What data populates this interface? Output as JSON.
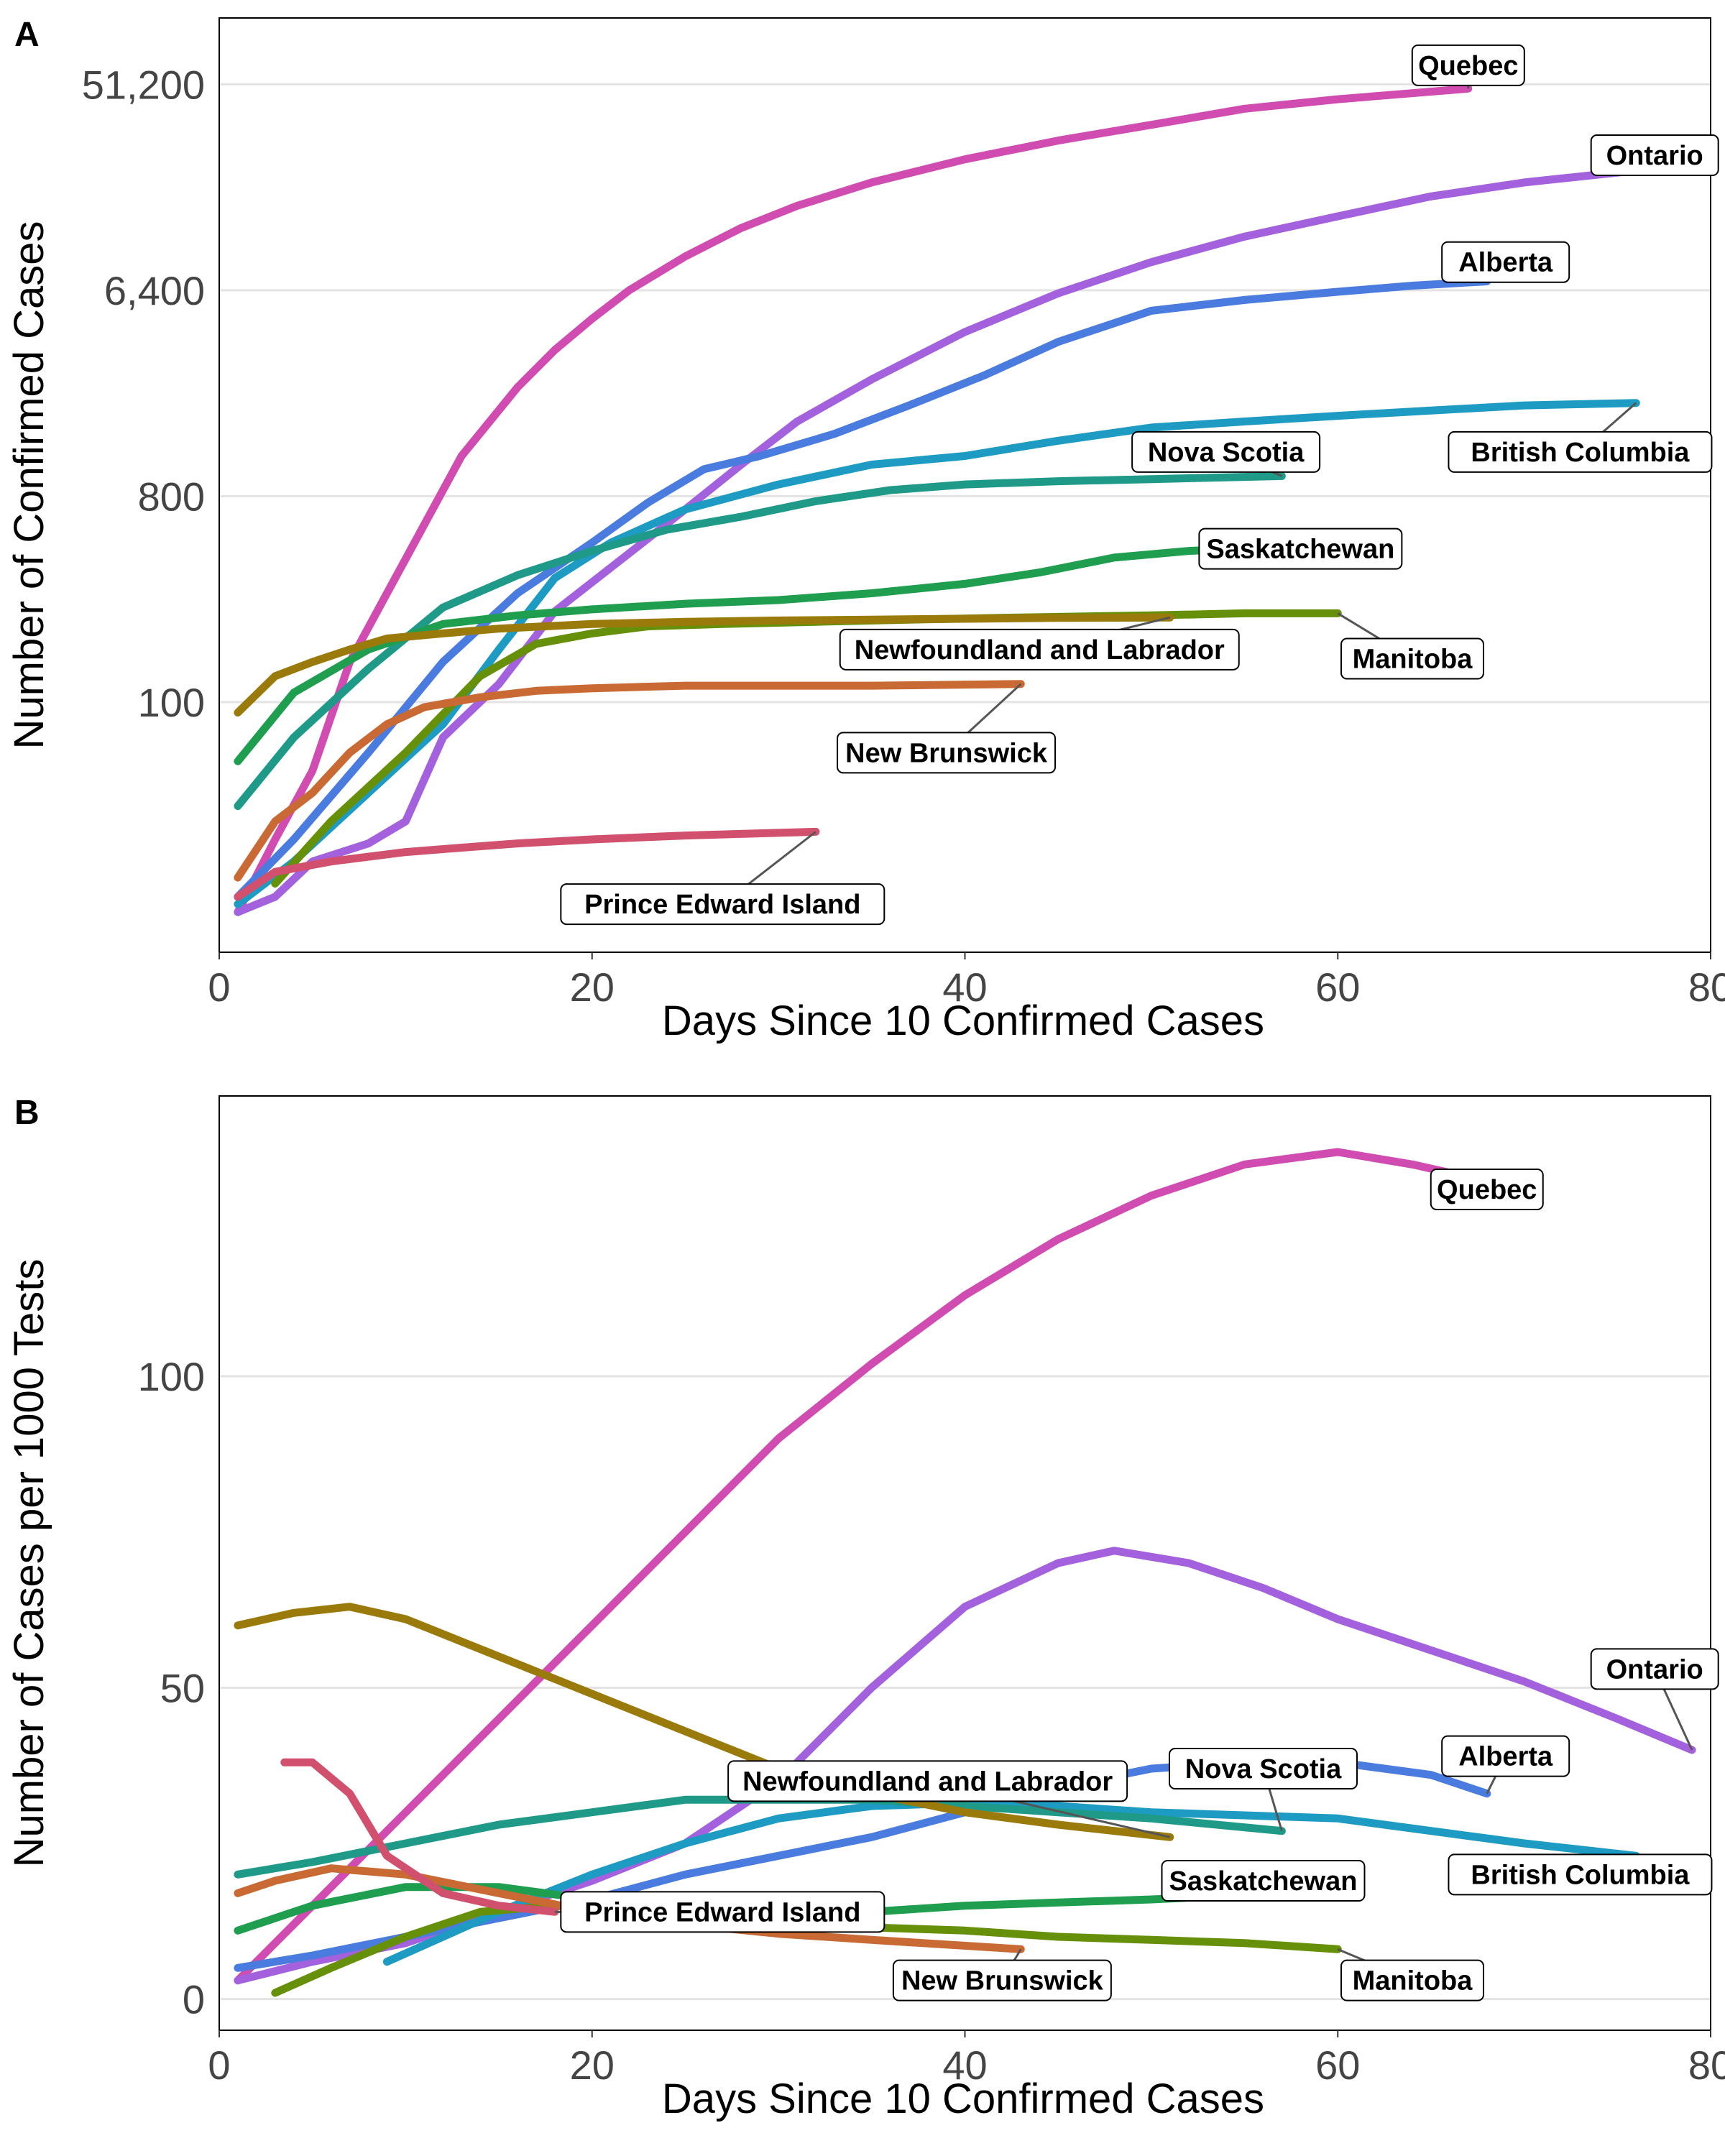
{
  "colors": {
    "Quebec": "#D14CB0",
    "Ontario": "#A361DD",
    "Alberta": "#4A7BDF",
    "British Columbia": "#1D9BC2",
    "Nova Scotia": "#1F9A89",
    "Saskatchewan": "#1E9E4E",
    "Manitoba": "#66900A",
    "Newfoundland and Labrador": "#9A7A0A",
    "New Brunswick": "#C96A35",
    "Prince Edward Island": "#D1506E"
  },
  "chart_data": [
    {
      "panel": "A",
      "type": "line",
      "xlabel": "Days Since 10 Confirmed Cases",
      "ylabel": "Number of Confirmed Cases",
      "xlim": [
        0,
        80
      ],
      "xticks": [
        0,
        20,
        40,
        60,
        80
      ],
      "ylim": [
        8,
        100000
      ],
      "y_scale": "log",
      "yticks": [
        100,
        800,
        6400,
        51200
      ],
      "ytick_labels": [
        "100",
        "800",
        "6,400",
        "51,200"
      ],
      "grid": "horizontal",
      "series": [
        {
          "name": "Quebec",
          "label_pos": [
            67,
            62000
          ],
          "x": [
            1,
            3,
            5,
            7,
            9,
            11,
            13,
            16,
            18,
            20,
            22,
            25,
            28,
            31,
            35,
            40,
            45,
            50,
            55,
            60,
            67
          ],
          "y": [
            12,
            25,
            50,
            150,
            300,
            600,
            1200,
            2400,
            3500,
            4800,
            6400,
            9000,
            12000,
            15000,
            19000,
            24000,
            29000,
            34000,
            40000,
            44000,
            49000
          ]
        },
        {
          "name": "Ontario",
          "label_pos": [
            77,
            25000
          ],
          "x": [
            1,
            3,
            5,
            8,
            10,
            12,
            15,
            18,
            22,
            25,
            28,
            31,
            35,
            40,
            45,
            50,
            55,
            60,
            65,
            70,
            75,
            79
          ],
          "y": [
            12,
            14,
            20,
            24,
            30,
            70,
            120,
            250,
            450,
            700,
            1100,
            1700,
            2600,
            4200,
            6200,
            8500,
            11000,
            13500,
            16500,
            19000,
            21000,
            22500
          ]
        },
        {
          "name": "Alberta",
          "label_pos": [
            69,
            8500
          ],
          "x": [
            1,
            4,
            8,
            12,
            16,
            20,
            23,
            26,
            29,
            33,
            37,
            41,
            45,
            50,
            55,
            60,
            64,
            68
          ],
          "y": [
            14,
            25,
            60,
            150,
            300,
            500,
            750,
            1050,
            1200,
            1500,
            2000,
            2700,
            3800,
            5200,
            5800,
            6300,
            6700,
            7000
          ]
        },
        {
          "name": "British Columbia",
          "label_pos": [
            73,
            1250
          ],
          "x": [
            1,
            4,
            8,
            12,
            15,
            18,
            21,
            25,
            30,
            35,
            40,
            45,
            50,
            55,
            60,
            65,
            70,
            76
          ],
          "y": [
            13,
            20,
            40,
            80,
            170,
            350,
            500,
            700,
            900,
            1100,
            1200,
            1400,
            1600,
            1700,
            1800,
            1900,
            2000,
            2050
          ]
        },
        {
          "name": "Nova Scotia",
          "label_pos": [
            54,
            1250
          ],
          "x": [
            1,
            4,
            8,
            12,
            16,
            20,
            24,
            28,
            32,
            36,
            40,
            45,
            50,
            57
          ],
          "y": [
            35,
            70,
            140,
            260,
            360,
            460,
            570,
            650,
            760,
            850,
            900,
            930,
            950,
            980
          ]
        },
        {
          "name": "Saskatchewan",
          "label_pos": [
            58,
            470
          ],
          "x": [
            1,
            4,
            8,
            12,
            16,
            20,
            25,
            30,
            35,
            40,
            44,
            48,
            52,
            57
          ],
          "y": [
            55,
            110,
            170,
            220,
            240,
            255,
            270,
            280,
            300,
            330,
            370,
            430,
            460,
            480
          ]
        },
        {
          "name": "Manitoba",
          "label_pos": [
            64,
            155
          ],
          "x": [
            3,
            6,
            10,
            14,
            17,
            20,
            23,
            27,
            32,
            37,
            43,
            50,
            55,
            60
          ],
          "y": [
            16,
            30,
            60,
            130,
            180,
            200,
            215,
            220,
            225,
            230,
            235,
            240,
            245,
            245
          ]
        },
        {
          "name": "Newfoundland and Labrador",
          "label_pos": [
            44,
            170
          ],
          "x": [
            1,
            3,
            5,
            7,
            9,
            12,
            15,
            20,
            25,
            30,
            35,
            40,
            45,
            51
          ],
          "y": [
            90,
            130,
            150,
            170,
            190,
            200,
            210,
            220,
            225,
            228,
            230,
            232,
            234,
            235
          ]
        },
        {
          "name": "New Brunswick",
          "label_pos": [
            39,
            60
          ],
          "x": [
            1,
            3,
            5,
            7,
            9,
            11,
            14,
            17,
            20,
            25,
            30,
            35,
            43
          ],
          "y": [
            17,
            30,
            40,
            60,
            80,
            95,
            105,
            112,
            115,
            118,
            118,
            118,
            120
          ]
        },
        {
          "name": "Prince Edward Island",
          "label_pos": [
            27,
            13
          ],
          "x": [
            1,
            3,
            6,
            10,
            13,
            16,
            20,
            25,
            32
          ],
          "y": [
            14,
            18,
            20,
            22,
            23,
            24,
            25,
            26,
            27
          ]
        }
      ]
    },
    {
      "panel": "B",
      "type": "line",
      "xlabel": "Days Since 10 Confirmed Cases",
      "ylabel": "Number of Cases per 1000 Tests",
      "xlim": [
        0,
        80
      ],
      "xticks": [
        0,
        20,
        40,
        60,
        80
      ],
      "ylim": [
        -5,
        145
      ],
      "yticks": [
        0,
        50,
        100
      ],
      "grid": "horizontal",
      "series": [
        {
          "name": "Quebec",
          "label_pos": [
            68,
            130
          ],
          "x": [
            1,
            5,
            10,
            15,
            20,
            25,
            30,
            35,
            40,
            45,
            50,
            55,
            60,
            64,
            67
          ],
          "y": [
            3,
            15,
            30,
            45,
            60,
            75,
            90,
            102,
            113,
            122,
            129,
            134,
            136,
            134,
            132
          ]
        },
        {
          "name": "Ontario",
          "label_pos": [
            77,
            53
          ],
          "x": [
            1,
            5,
            10,
            15,
            20,
            25,
            30,
            35,
            40,
            45,
            48,
            52,
            56,
            60,
            65,
            70,
            75,
            79
          ],
          "y": [
            3,
            6,
            9,
            14,
            19,
            25,
            35,
            50,
            63,
            70,
            72,
            70,
            66,
            61,
            56,
            51,
            45,
            40
          ]
        },
        {
          "name": "Alberta",
          "label_pos": [
            69,
            39
          ],
          "x": [
            1,
            5,
            10,
            15,
            20,
            25,
            30,
            35,
            40,
            45,
            50,
            55,
            60,
            65,
            68
          ],
          "y": [
            5,
            7,
            10,
            13,
            16,
            20,
            23,
            26,
            30,
            34,
            37,
            38,
            38,
            36,
            33
          ]
        },
        {
          "name": "British Columbia",
          "label_pos": [
            73,
            20
          ],
          "x": [
            9,
            12,
            15,
            20,
            25,
            30,
            35,
            40,
            45,
            50,
            55,
            60,
            65,
            70,
            76
          ],
          "y": [
            6,
            10,
            14,
            20,
            25,
            29,
            31,
            31.5,
            31,
            30,
            29.5,
            29,
            27,
            25,
            23
          ]
        },
        {
          "name": "Nova Scotia",
          "label_pos": [
            56,
            37
          ],
          "x": [
            1,
            5,
            10,
            15,
            20,
            25,
            30,
            35,
            40,
            45,
            50,
            57
          ],
          "y": [
            20,
            22,
            25,
            28,
            30,
            32,
            32,
            32,
            31,
            30,
            29,
            27
          ]
        },
        {
          "name": "Saskatchewan",
          "label_pos": [
            56,
            19
          ],
          "x": [
            1,
            5,
            10,
            15,
            20,
            25,
            30,
            35,
            40,
            45,
            50,
            57
          ],
          "y": [
            11,
            15,
            18,
            18,
            16,
            15,
            14,
            14,
            15,
            15.5,
            16,
            17
          ]
        },
        {
          "name": "Manitoba",
          "label_pos": [
            64,
            3
          ],
          "x": [
            3,
            6,
            10,
            14,
            18,
            22,
            26,
            30,
            35,
            40,
            45,
            50,
            55,
            60
          ],
          "y": [
            1,
            5,
            10,
            14,
            15,
            14,
            13,
            12,
            11.5,
            11,
            10,
            9.5,
            9,
            8
          ]
        },
        {
          "name": "Newfoundland and Labrador",
          "label_pos": [
            38,
            35
          ],
          "x": [
            1,
            4,
            7,
            10,
            15,
            20,
            25,
            30,
            35,
            40,
            45,
            51
          ],
          "y": [
            60,
            62,
            63,
            61,
            55,
            49,
            43,
            37,
            33,
            30,
            28,
            26
          ]
        },
        {
          "name": "New Brunswick",
          "label_pos": [
            42,
            3
          ],
          "x": [
            1,
            3,
            6,
            10,
            15,
            20,
            25,
            30,
            35,
            43
          ],
          "y": [
            17,
            19,
            21,
            20,
            17,
            14,
            12,
            10.5,
            9.5,
            8
          ]
        },
        {
          "name": "Prince Edward Island",
          "label_pos": [
            27,
            14
          ],
          "x": [
            3.5,
            5,
            7,
            9,
            12,
            15,
            18
          ],
          "y": [
            38,
            38,
            33,
            23,
            17,
            15,
            14
          ]
        }
      ]
    }
  ]
}
